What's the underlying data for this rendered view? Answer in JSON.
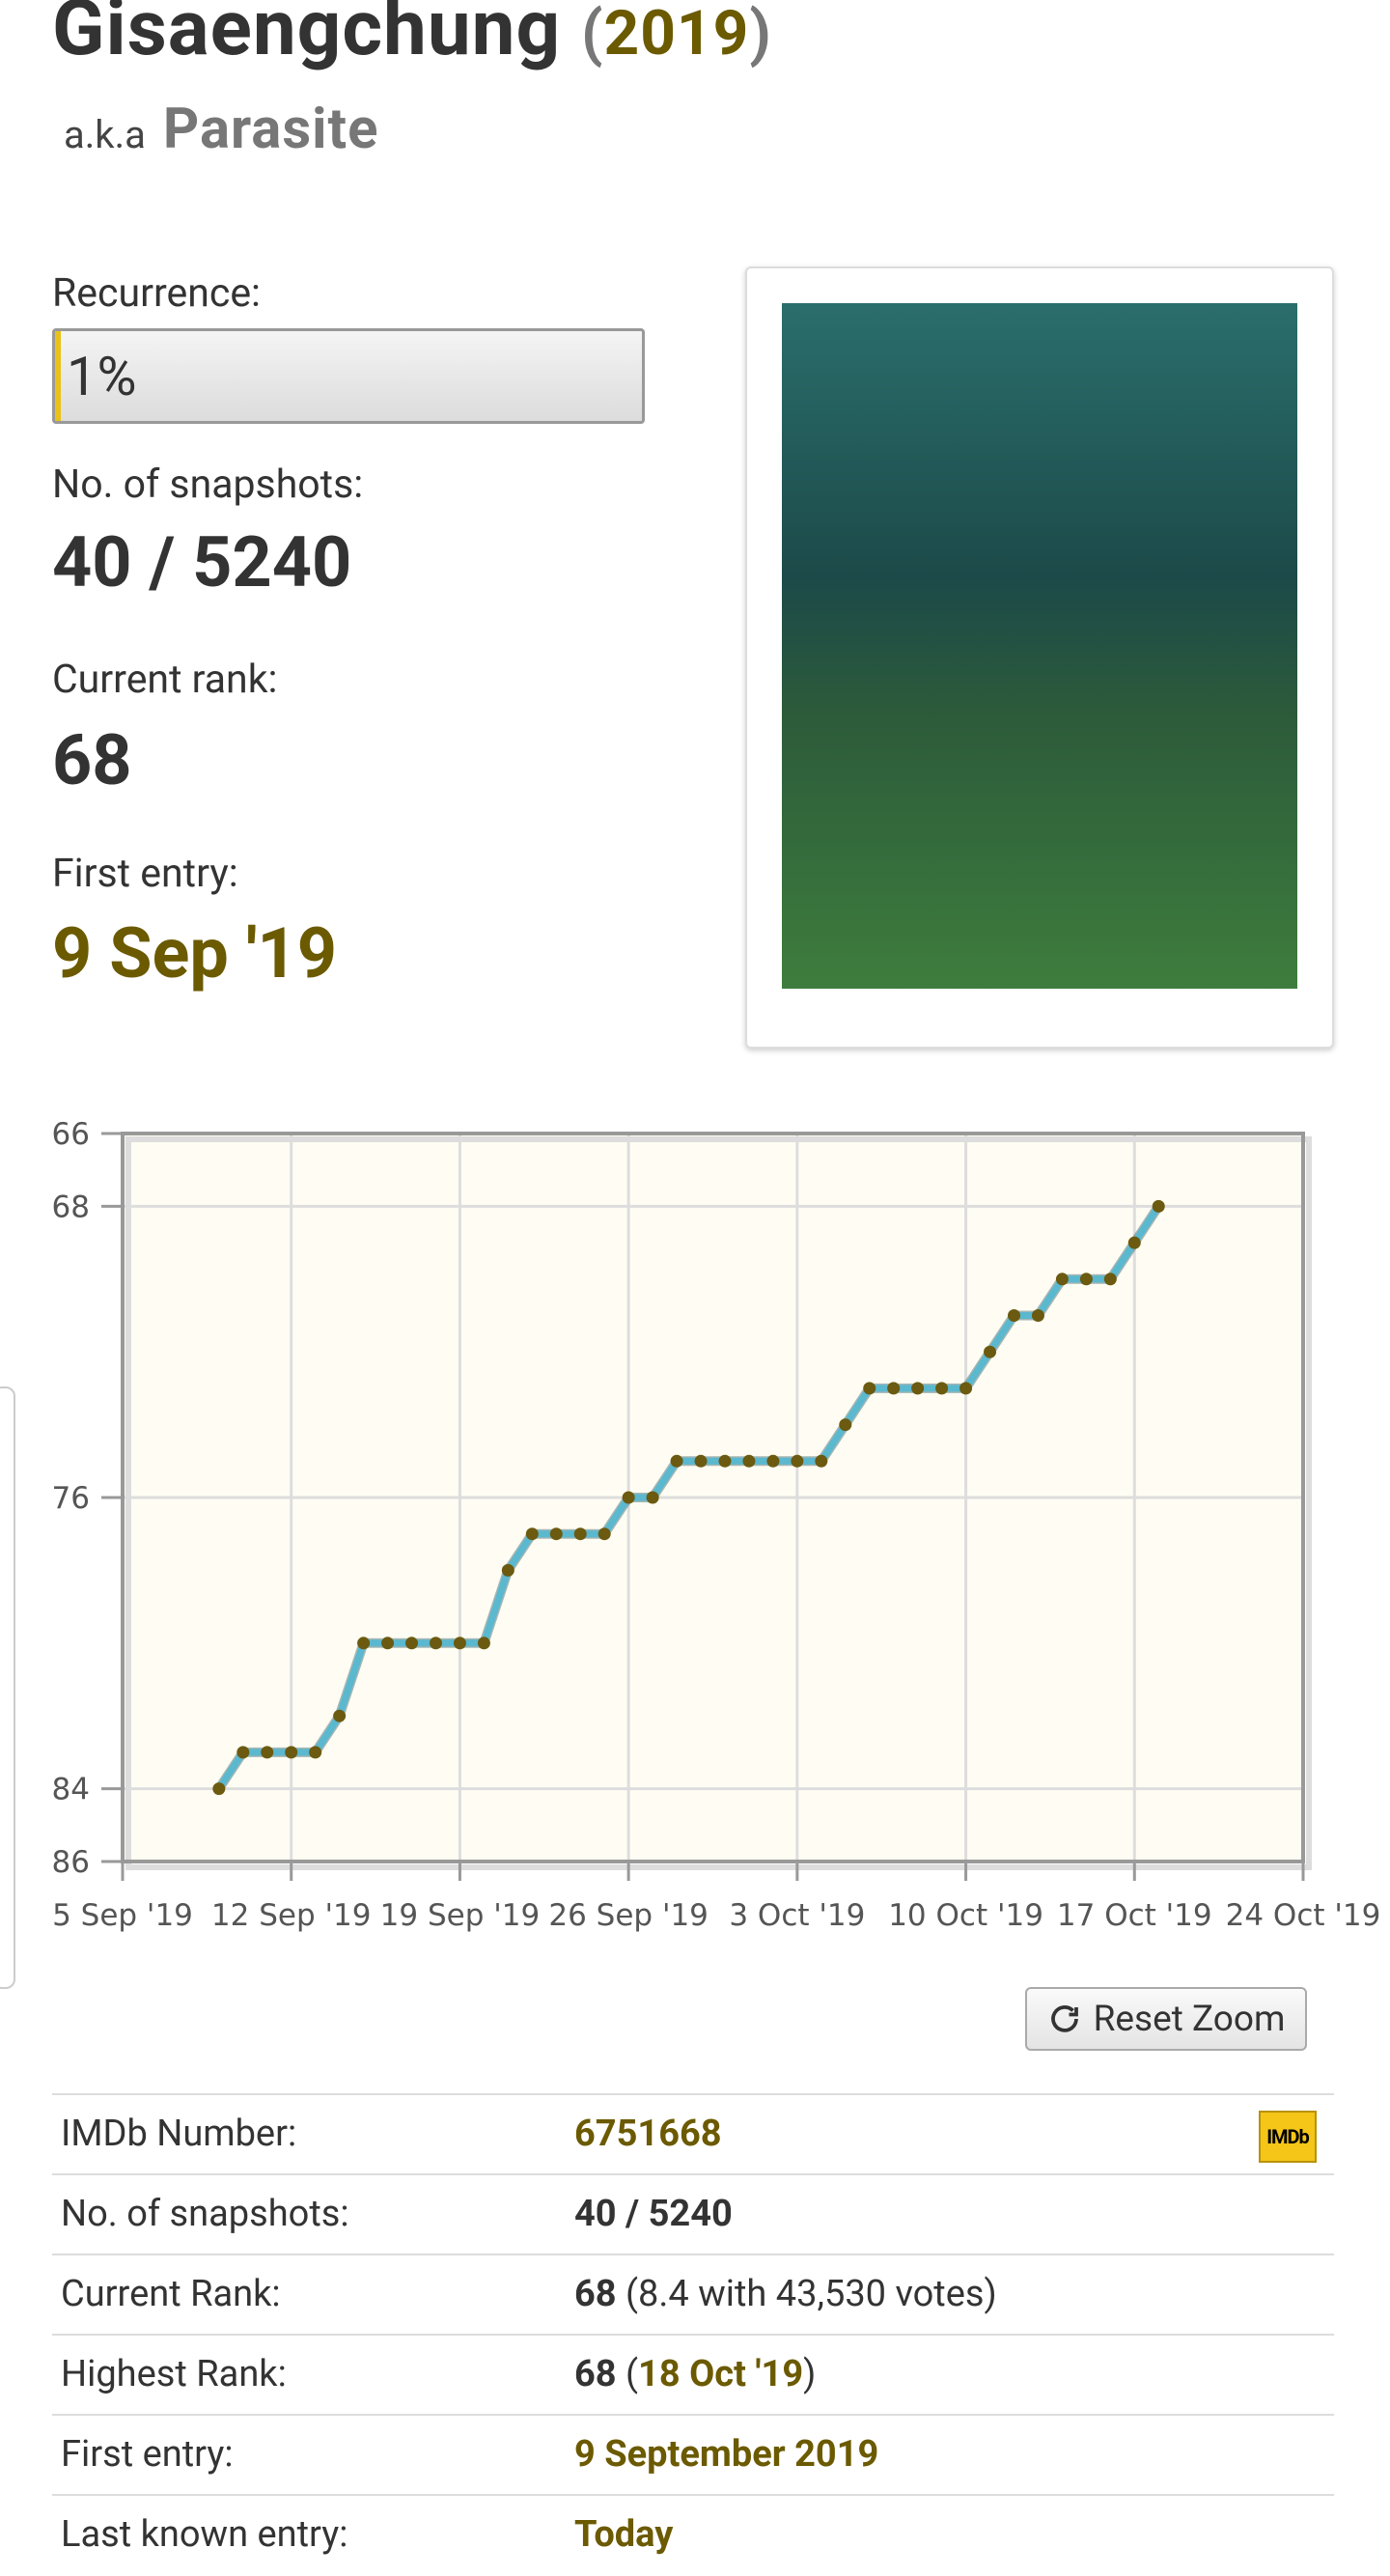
{
  "header": {
    "title": "Gisaengchung",
    "year_open": "(",
    "year": "2019",
    "year_close": ")",
    "aka_label": "a.k.a",
    "aka": "Parasite"
  },
  "recurrence": {
    "label": "Recurrence:",
    "value": 1,
    "value_label": "1%",
    "range": [
      0,
      100
    ]
  },
  "snapshots": {
    "label": "No. of snapshots:",
    "value": "40 / 5240"
  },
  "current_rank": {
    "label": "Current rank:",
    "value": "68"
  },
  "first_entry": {
    "label": "First entry:",
    "value": "9 Sep '19"
  },
  "chart_data": {
    "type": "line",
    "x": [
      "2019-09-09",
      "2019-09-10",
      "2019-09-11",
      "2019-09-12",
      "2019-09-13",
      "2019-09-14",
      "2019-09-15",
      "2019-09-16",
      "2019-09-17",
      "2019-09-18",
      "2019-09-19",
      "2019-09-20",
      "2019-09-21",
      "2019-09-22",
      "2019-09-23",
      "2019-09-24",
      "2019-09-25",
      "2019-09-26",
      "2019-09-27",
      "2019-09-28",
      "2019-09-29",
      "2019-09-30",
      "2019-10-01",
      "2019-10-02",
      "2019-10-03",
      "2019-10-04",
      "2019-10-05",
      "2019-10-06",
      "2019-10-07",
      "2019-10-08",
      "2019-10-09",
      "2019-10-10",
      "2019-10-11",
      "2019-10-12",
      "2019-10-13",
      "2019-10-14",
      "2019-10-15",
      "2019-10-16",
      "2019-10-17",
      "2019-10-18"
    ],
    "values": [
      84,
      83,
      83,
      83,
      83,
      82,
      80,
      80,
      80,
      80,
      80,
      80,
      78,
      77,
      77,
      77,
      77,
      76,
      76,
      75,
      75,
      75,
      75,
      75,
      75,
      75,
      74,
      73,
      73,
      73,
      73,
      73,
      72,
      71,
      71,
      70,
      70,
      70,
      69,
      68
    ],
    "color": "#5ab8cf",
    "marker_color": "#6b5a10",
    "xlim": [
      "2019-09-05",
      "2019-10-24"
    ],
    "xticks": [
      {
        "value": "2019-09-05",
        "label": "5 Sep '19"
      },
      {
        "value": "2019-09-12",
        "label": "12 Sep '19"
      },
      {
        "value": "2019-09-19",
        "label": "19 Sep '19"
      },
      {
        "value": "2019-09-26",
        "label": "26 Sep '19"
      },
      {
        "value": "2019-10-03",
        "label": "3 Oct '19"
      },
      {
        "value": "2019-10-10",
        "label": "10 Oct '19"
      },
      {
        "value": "2019-10-17",
        "label": "17 Oct '19"
      },
      {
        "value": "2019-10-24",
        "label": "24 Oct '19"
      }
    ],
    "ylim": [
      66,
      86
    ],
    "y_reversed": true,
    "yticks": [
      66,
      68,
      76,
      84,
      86
    ],
    "grid": true
  },
  "reset_zoom": "Reset Zoom",
  "table": {
    "rows": [
      {
        "label": "IMDb Number:",
        "value": [
          {
            "text": "6751668",
            "style": "link"
          }
        ],
        "badge": "IMDb"
      },
      {
        "label": "No. of snapshots:",
        "value": [
          {
            "text": "40 / 5240",
            "style": "bold"
          }
        ]
      },
      {
        "label": "Current Rank:",
        "value": [
          {
            "text": "68",
            "style": "bold"
          },
          {
            "text": " (8.4 with 43,530 votes)"
          }
        ]
      },
      {
        "label": "Highest Rank:",
        "value": [
          {
            "text": "68",
            "style": "bold"
          },
          {
            "text": " ("
          },
          {
            "text": "18 Oct '19",
            "style": "link"
          },
          {
            "text": ")"
          }
        ]
      },
      {
        "label": "First entry:",
        "value": [
          {
            "text": "9 September 2019",
            "style": "link"
          }
        ]
      },
      {
        "label": "Last known entry:",
        "value": [
          {
            "text": "Today",
            "style": "link"
          }
        ]
      }
    ]
  }
}
